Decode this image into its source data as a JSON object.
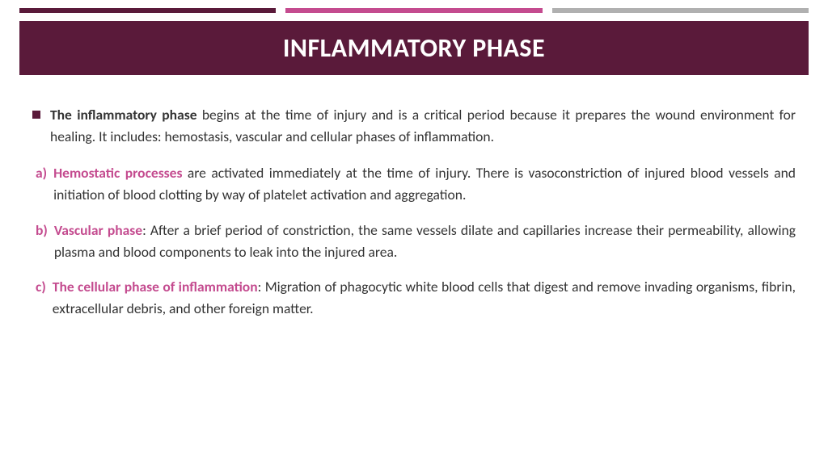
{
  "colors": {
    "dark_maroon": "#5a1a3a",
    "magenta": "#c44b8f",
    "gray": "#b0b0b0",
    "title_band": "#5a1a3a",
    "title_text": "#ffffff",
    "body_text": "#333333",
    "accent_pink": "#c44b8f"
  },
  "title": "INFLAMMATORY PHASE",
  "intro": {
    "bold": "The inflammatory phase",
    "rest": " begins at the time of injury and is a critical period because it prepares the wound environment for healing. It includes: hemostasis, vascular and cellular phases of inflammation."
  },
  "items": [
    {
      "marker": "a)",
      "term": "Hemostatic processes",
      "rest": " are activated immediately at the time of injury. There is vasoconstriction of injured blood vessels and initiation of blood clotting by way of platelet activation and aggregation."
    },
    {
      "marker": "b)",
      "term": "Vascular phase",
      "rest": ":  After a brief period of constriction, the same vessels dilate and capillaries increase their permeability, allowing plasma and blood components to leak into the injured area."
    },
    {
      "marker": "c)",
      "term": "The cellular phase of inflammation",
      "rest": ": Migration of phagocytic white blood cells that digest and remove invading organisms, fibrin, extracellular debris, and other foreign matter."
    }
  ]
}
